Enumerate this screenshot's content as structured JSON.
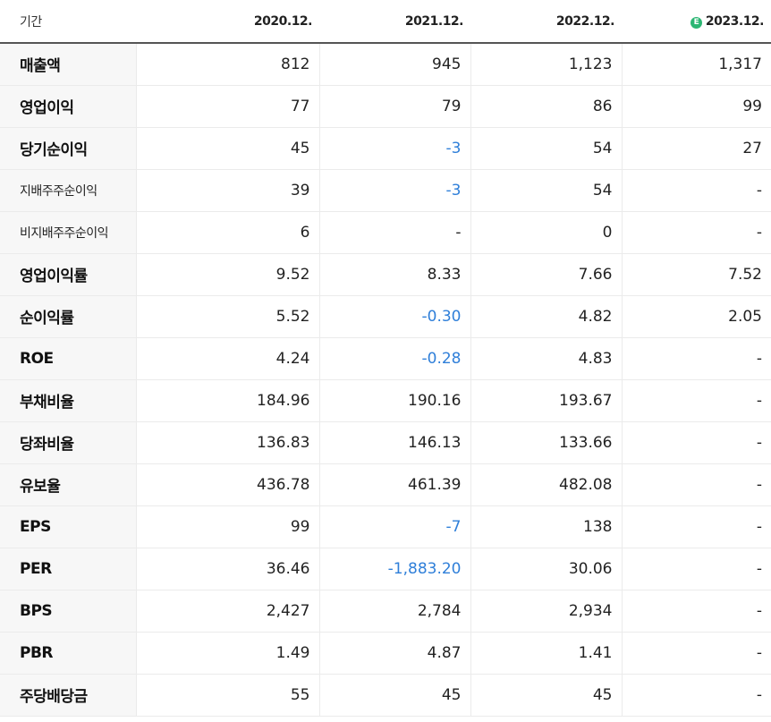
{
  "table": {
    "headers": [
      "기간",
      "2020.12.",
      "2021.12.",
      "2022.12.",
      "2023.12."
    ],
    "estimate_icon": "Ⓔ",
    "rows": [
      {
        "label": "매출액",
        "values": [
          "812",
          "945",
          "1,123",
          "1,317"
        ]
      },
      {
        "label": "영업이익",
        "values": [
          "77",
          "79",
          "86",
          "99"
        ]
      },
      {
        "label": "당기순이익",
        "values": [
          "45",
          "-3",
          "54",
          "27"
        ]
      },
      {
        "label": "지배주주순이익",
        "values": [
          "39",
          "-3",
          "54",
          "-"
        ]
      },
      {
        "label": "비지배주주순이익",
        "values": [
          "6",
          "-",
          "0",
          "-"
        ]
      },
      {
        "label": "영업이익률",
        "values": [
          "9.52",
          "8.33",
          "7.66",
          "7.52"
        ]
      },
      {
        "label": "순이익률",
        "values": [
          "5.52",
          "-0.30",
          "4.82",
          "2.05"
        ]
      },
      {
        "label": "ROE",
        "values": [
          "4.24",
          "-0.28",
          "4.83",
          "-"
        ]
      },
      {
        "label": "부채비율",
        "values": [
          "184.96",
          "190.16",
          "193.67",
          "-"
        ]
      },
      {
        "label": "당좌비율",
        "values": [
          "136.83",
          "146.13",
          "133.66",
          "-"
        ]
      },
      {
        "label": "유보율",
        "values": [
          "436.78",
          "461.39",
          "482.08",
          "-"
        ]
      },
      {
        "label": "EPS",
        "values": [
          "99",
          "-7",
          "138",
          "-"
        ]
      },
      {
        "label": "PER",
        "values": [
          "36.46",
          "-1,883.20",
          "30.06",
          "-"
        ]
      },
      {
        "label": "BPS",
        "values": [
          "2,427",
          "2,784",
          "2,934",
          "-"
        ]
      },
      {
        "label": "PBR",
        "values": [
          "1.49",
          "4.87",
          "1.41",
          "-"
        ]
      },
      {
        "label": "주당배당금",
        "values": [
          "55",
          "45",
          "45",
          "-"
        ]
      }
    ]
  },
  "colors": {
    "negative": "#2f7fd9",
    "estimate_badge": "#2bb673",
    "label_bg": "#f7f7f7"
  }
}
